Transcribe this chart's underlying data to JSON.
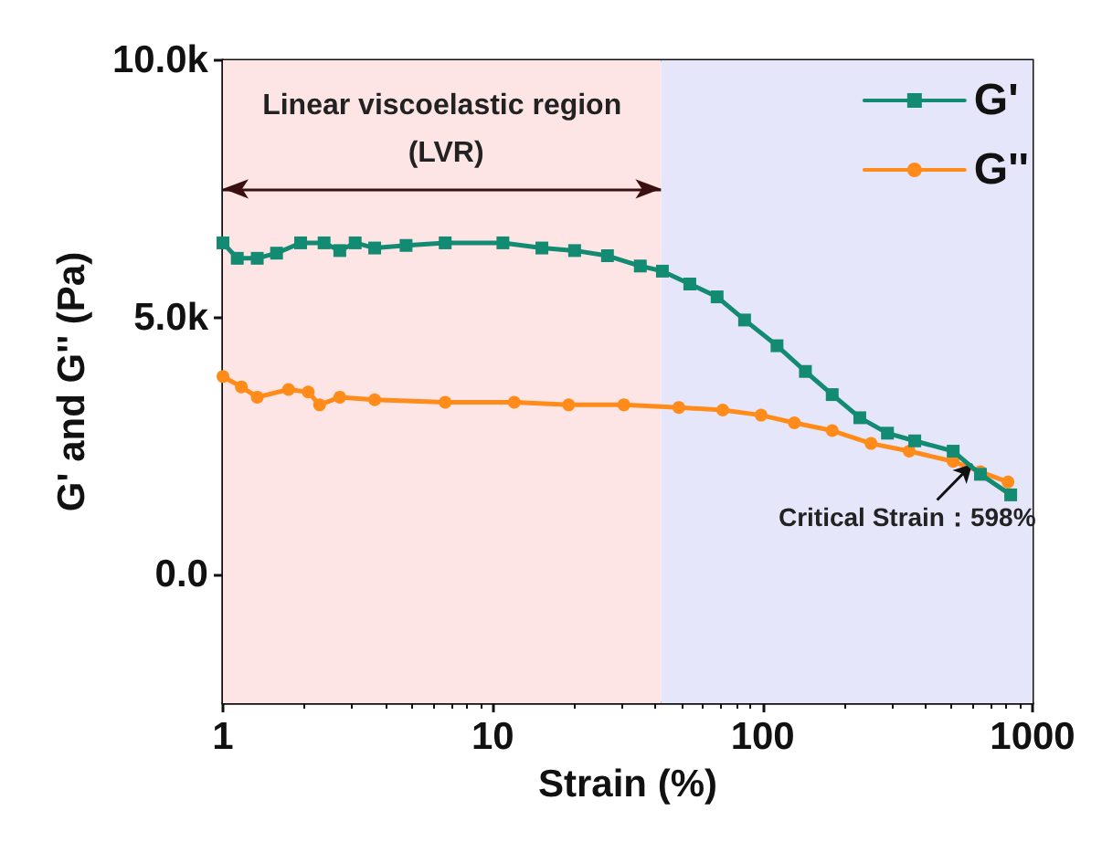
{
  "chart_data": {
    "type": "line",
    "xlabel": "Strain (%)",
    "ylabel": "G' and G'' (Pa)",
    "log": "x",
    "xlim": [
      1,
      1000
    ],
    "xticks": [
      1,
      10,
      100,
      1000
    ],
    "ylim": [
      -2500,
      10000
    ],
    "yticks": [
      {
        "value": 0,
        "label": "0.0"
      },
      {
        "value": 5000,
        "label": "5.0k"
      },
      {
        "value": 10000,
        "label": "10.0k"
      }
    ],
    "grid": false,
    "legend": "top right",
    "line_style": "solid",
    "series": [
      {
        "name": "G'",
        "color": "#138a72",
        "marker": "square",
        "x": [
          1.0,
          1.13,
          1.34,
          1.58,
          1.94,
          2.37,
          2.71,
          3.09,
          3.65,
          4.77,
          6.66,
          10.9,
          15.2,
          20.1,
          26.6,
          35.2,
          42.5,
          53.7,
          67.8,
          85.7,
          113,
          144,
          181,
          229,
          290,
          366,
          508,
          641,
          830
        ],
        "values": [
          6450,
          6150,
          6150,
          6250,
          6450,
          6450,
          6300,
          6450,
          6350,
          6400,
          6450,
          6450,
          6350,
          6300,
          6200,
          6000,
          5900,
          5650,
          5400,
          4950,
          4450,
          3950,
          3500,
          3050,
          2750,
          2600,
          2400,
          1950,
          1550
        ]
      },
      {
        "name": "G''",
        "color": "#ff8c1a",
        "marker": "circle",
        "x": [
          1.0,
          1.17,
          1.34,
          1.75,
          2.07,
          2.28,
          2.71,
          3.65,
          6.66,
          12.0,
          19.1,
          30.6,
          48.9,
          71.1,
          98.6,
          131,
          181,
          252,
          349,
          508,
          641,
          811
        ],
        "values": [
          3850,
          3650,
          3450,
          3600,
          3550,
          3300,
          3450,
          3400,
          3350,
          3350,
          3300,
          3300,
          3250,
          3200,
          3100,
          2950,
          2800,
          2550,
          2400,
          2200,
          2000,
          1800
        ]
      }
    ],
    "bands": [
      {
        "axis": "x",
        "from": 1,
        "to": 42,
        "label": "Linear viscoelastic region (LVR)",
        "color": "#fde5e5"
      },
      {
        "axis": "x",
        "from": 42,
        "to": 1000,
        "color": "#e6e6fa"
      }
    ],
    "annotations": [
      {
        "text": "Critical Strain：598%",
        "x": 598,
        "y": 2150
      }
    ]
  }
}
